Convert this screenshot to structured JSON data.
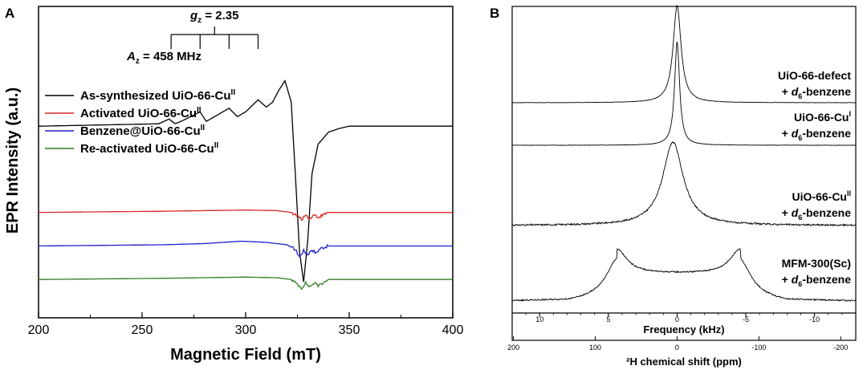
{
  "chart_data": [
    {
      "panel": "A",
      "type": "line",
      "title": "",
      "xlabel": "Magnetic Field (mT)",
      "ylabel": "EPR Intensity (a.u.)",
      "xlim": [
        200,
        400
      ],
      "x_ticks": [
        "200",
        "250",
        "300",
        "350",
        "400"
      ],
      "ylim": [
        -1.6,
        1.0
      ],
      "grid": false,
      "legend_position": "middle-left",
      "series": [
        {
          "name": "As-synthesized UiO-66-Cu",
          "sup": "II",
          "color": "#000000",
          "offset": 0.0,
          "x": [
            200,
            258,
            263,
            266,
            270,
            278,
            281,
            286,
            292,
            296,
            300,
            306,
            310,
            313,
            316,
            319,
            322,
            324,
            326,
            328,
            330,
            332,
            335,
            340,
            345,
            350,
            360,
            400
          ],
          "y": [
            0,
            0.02,
            0.06,
            0.02,
            0.05,
            0.12,
            0.04,
            0.09,
            0.15,
            0.08,
            0.12,
            0.22,
            0.16,
            0.2,
            0.3,
            0.38,
            0.2,
            -0.4,
            -1.05,
            -1.3,
            -0.95,
            -0.4,
            -0.15,
            -0.05,
            -0.02,
            0,
            0,
            0
          ]
        },
        {
          "name": "Activated UiO-66-Cu",
          "sup": "II",
          "color": "#d62728",
          "offset": -0.72,
          "x": [
            200,
            260,
            280,
            300,
            315,
            322,
            325,
            327,
            329,
            331,
            333,
            335,
            340,
            350,
            400
          ],
          "y": [
            0,
            0.01,
            0.015,
            0.02,
            0.015,
            0.0,
            -0.03,
            -0.06,
            -0.02,
            -0.05,
            -0.02,
            -0.04,
            0,
            0,
            0
          ]
        },
        {
          "name": "Benzene@UiO-66-Cu",
          "sup": "II",
          "color": "#1f1fcc",
          "offset": -1.0,
          "x": [
            200,
            260,
            280,
            298,
            310,
            320,
            324,
            326,
            328,
            330,
            332,
            334,
            336,
            340,
            350,
            400
          ],
          "y": [
            0,
            0.01,
            0.02,
            0.04,
            0.03,
            0.01,
            -0.03,
            -0.09,
            -0.04,
            -0.07,
            -0.03,
            -0.06,
            -0.02,
            0,
            0,
            0
          ]
        },
        {
          "name": "Re-activated UiO-66-Cu",
          "sup": "II",
          "color": "#2e7d1e",
          "offset": -1.28,
          "x": [
            200,
            260,
            280,
            300,
            315,
            322,
            325,
            327,
            329,
            331,
            333,
            335,
            340,
            350,
            400
          ],
          "y": [
            0,
            0.01,
            0.015,
            0.02,
            0.015,
            0.0,
            -0.04,
            -0.07,
            -0.03,
            -0.06,
            -0.03,
            -0.05,
            0,
            0,
            0
          ]
        }
      ],
      "annotations": {
        "gz": {
          "label": "g",
          "sub": "z",
          "value": " = 2.35",
          "field_positions": [
            264,
            278,
            292,
            306
          ]
        },
        "az": {
          "label": "A",
          "sub": "z",
          "value": " = 458 MHz"
        }
      }
    },
    {
      "panel": "B",
      "type": "line",
      "title": "",
      "xlabel": "Frequency (kHz)",
      "xlabel2": "²H chemical shift (ppm)",
      "xlim": [
        12,
        -13
      ],
      "x_ticks": [
        "10",
        "5",
        "0",
        "-5",
        "-10"
      ],
      "x_tick_values": [
        10,
        5,
        0,
        -5,
        -10
      ],
      "x2_ticks": [
        "200",
        "100",
        "0",
        "-100",
        "-200"
      ],
      "grid": false,
      "spectra": [
        {
          "name": "UiO-66-defect",
          "line2_prefix": "+ ",
          "line2_italic": "d",
          "line2_sub": "6",
          "line2_suffix": "-benzene",
          "type": "lorentz",
          "center": 0.0,
          "width": 0.35,
          "height": 1.0
        },
        {
          "name": "UiO-66-Cu",
          "sup": "I",
          "line2_prefix": "+ ",
          "line2_italic": "d",
          "line2_sub": "6",
          "line2_suffix": "-benzene",
          "type": "lorentz",
          "center": 0.0,
          "width": 0.22,
          "height": 1.0
        },
        {
          "name": "UiO-66-Cu",
          "sup": "II",
          "line2_prefix": "+ ",
          "line2_italic": "d",
          "line2_sub": "6",
          "line2_suffix": "-benzene",
          "type": "lorentz",
          "center": 0.3,
          "width": 0.9,
          "height": 1.0
        },
        {
          "name": "MFM-300(Sc)",
          "line2_prefix": "+ ",
          "line2_italic": "d",
          "line2_sub": "6",
          "line2_suffix": "-benzene",
          "type": "pake",
          "horns": [
            4.4,
            -4.6
          ],
          "height": 1.0
        }
      ]
    }
  ]
}
